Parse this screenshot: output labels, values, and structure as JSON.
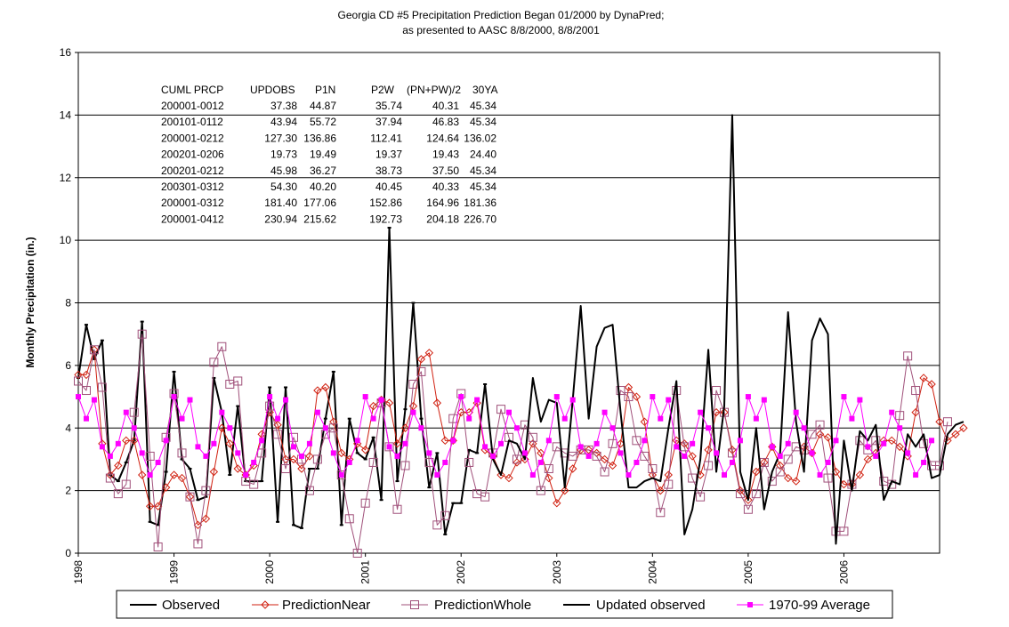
{
  "chart_data": {
    "type": "line",
    "title": "Georgia CD #5 Precipitation Prediction Began 01/2000 by DynaPred;",
    "subtitle": "as presented to AASC 8/8/2000, 8/8/2001",
    "xlabel": "",
    "ylabel": "Monthly Precipitation (in.)",
    "ylim": [
      0,
      16
    ],
    "yticks": [
      "0",
      "2",
      "4",
      "6",
      "8",
      "10",
      "12",
      "14",
      "16"
    ],
    "xlim": [
      1998,
      2007
    ],
    "xticks": [
      "1998",
      "1999",
      "2000",
      "2001",
      "2002",
      "2003",
      "2004",
      "2005",
      "2006"
    ],
    "grid": "horizontal",
    "legend_position": "bottom",
    "table": {
      "headers": [
        "CUML PRCP",
        "UPDOBS",
        "P1N",
        "P2W",
        "(PN+PW)/2",
        "30YA"
      ],
      "rows": [
        [
          "200001-0012",
          "37.38",
          "44.87",
          "35.74",
          "40.31",
          "45.34"
        ],
        [
          "200101-0112",
          "43.94",
          "55.72",
          "37.94",
          "46.83",
          "45.34"
        ],
        [
          "200001-0212",
          "127.30",
          "136.86",
          "112.41",
          "124.64",
          "136.02"
        ],
        [
          "200201-0206",
          "19.73",
          "19.49",
          "19.37",
          "19.43",
          "24.40"
        ],
        [
          "200201-0212",
          "45.98",
          "36.27",
          "38.73",
          "37.50",
          "45.34"
        ],
        [
          "200301-0312",
          "54.30",
          "40.20",
          "40.45",
          "40.33",
          "45.34"
        ],
        [
          "200001-0312",
          "181.40",
          "177.06",
          "152.86",
          "164.96",
          "181.36"
        ],
        [
          "200001-0412",
          "230.94",
          "215.62",
          "192.73",
          "204.18",
          "226.70"
        ]
      ]
    },
    "series": [
      {
        "name": "Observed",
        "color": "#000000",
        "start": "1998-01",
        "values": [
          5.6,
          7.3,
          6.2,
          6.8,
          2.5,
          2.3,
          2.9,
          3.6,
          7.4,
          1.0,
          0.9,
          2.6,
          5.8,
          3.0,
          2.7,
          1.7,
          1.8,
          5.6,
          4.5,
          2.5,
          4.7,
          2.3,
          2.3,
          2.3,
          5.3,
          1.0,
          5.3,
          0.9,
          0.8,
          2.7,
          2.7,
          4.3,
          5.8,
          0.9,
          4.3,
          3.2,
          3.0,
          3.7,
          1.7,
          10.4,
          2.3,
          4.6,
          8.0,
          4.3,
          2.1,
          3.2,
          0.6,
          1.6,
          1.6,
          3.3,
          3.2,
          5.4,
          null,
          null,
          null,
          null,
          null,
          null,
          null,
          null,
          null,
          null,
          null,
          null,
          null,
          null,
          null,
          null,
          null,
          null,
          null,
          null,
          null,
          null,
          null,
          null,
          null,
          null,
          null,
          null,
          null,
          null,
          null,
          null,
          null,
          null,
          null,
          null,
          null,
          null,
          null,
          null,
          null,
          null,
          null,
          null,
          null,
          null,
          null,
          null,
          null,
          null,
          null,
          null,
          null,
          null,
          null,
          null
        ]
      },
      {
        "name": "PredictionNear",
        "color": "#d02010",
        "start": "1998-01",
        "values": [
          5.7,
          5.7,
          6.5,
          3.5,
          2.5,
          2.8,
          3.6,
          3.6,
          2.5,
          1.5,
          1.5,
          2.1,
          2.5,
          2.4,
          1.8,
          0.9,
          1.1,
          2.6,
          4.0,
          3.5,
          2.7,
          2.5,
          2.8,
          3.8,
          4.5,
          4.1,
          3.0,
          3.0,
          2.7,
          3.1,
          5.2,
          5.3,
          4.2,
          3.2,
          3.0,
          3.5,
          3.3,
          4.7,
          4.9,
          4.8,
          3.5,
          4.0,
          4.7,
          6.2,
          6.4,
          4.8,
          3.6,
          3.6,
          4.5,
          4.5,
          4.8,
          3.3,
          3.1,
          2.5,
          2.4,
          2.9,
          3.0,
          3.5,
          3.2,
          2.4,
          1.6,
          2.0,
          2.7,
          3.3,
          3.3,
          3.2,
          3.0,
          2.8,
          3.5,
          5.3,
          5.0,
          4.2,
          2.5,
          2.0,
          2.5,
          3.6,
          3.5,
          3.1,
          2.5,
          3.3,
          4.5,
          4.5,
          3.3,
          2.0,
          1.7,
          2.6,
          2.9,
          3.4,
          2.8,
          2.4,
          2.3,
          3.4,
          3.2,
          3.8,
          3.7,
          2.6,
          2.2,
          2.2,
          2.5,
          3.0,
          3.2,
          3.6,
          3.6,
          3.4,
          3.1,
          4.5,
          5.6,
          5.4,
          4.2,
          3.6,
          3.8,
          4.0
        ]
      },
      {
        "name": "PredictionWhole",
        "color": "#a0507a",
        "start": "1998-01",
        "values": [
          5.5,
          5.2,
          6.5,
          5.3,
          2.4,
          1.9,
          2.2,
          4.5,
          7.0,
          3.1,
          0.2,
          3.7,
          5.1,
          3.2,
          1.8,
          0.3,
          2.0,
          6.1,
          6.6,
          5.4,
          5.5,
          2.3,
          2.2,
          3.2,
          4.7,
          3.8,
          2.7,
          3.7,
          3.0,
          2.0,
          3.0,
          3.8,
          4.0,
          2.5,
          1.1,
          0.0,
          1.6,
          2.9,
          4.8,
          3.4,
          1.4,
          2.8,
          5.4,
          5.8,
          2.9,
          0.9,
          1.2,
          4.3,
          5.1,
          2.9,
          1.9,
          1.8,
          3.2,
          4.6,
          3.7,
          3.0,
          4.1,
          3.7,
          2.0,
          2.7,
          3.4,
          3.2,
          3.1,
          3.3,
          3.3,
          3.1,
          2.6,
          3.5,
          5.2,
          5.0,
          3.6,
          3.1,
          2.7,
          1.3,
          2.2,
          5.2,
          3.4,
          2.4,
          1.8,
          2.8,
          5.2,
          4.5,
          3.2,
          1.9,
          1.4,
          1.9,
          2.9,
          2.3,
          2.6,
          3.0,
          3.4,
          3.3,
          3.8,
          4.1,
          2.4,
          0.7,
          0.7,
          2.2,
          3.6,
          3.3,
          3.6,
          2.3,
          2.2,
          4.4,
          6.3,
          5.2,
          3.5,
          2.8,
          2.8,
          4.2
        ]
      },
      {
        "name": "Updated observed",
        "color": "#000000",
        "start": "1998-01",
        "values": [
          null,
          null,
          null,
          null,
          null,
          null,
          null,
          null,
          null,
          null,
          null,
          null,
          null,
          null,
          null,
          null,
          null,
          null,
          null,
          null,
          null,
          null,
          null,
          null,
          null,
          null,
          null,
          null,
          null,
          null,
          null,
          null,
          null,
          null,
          null,
          null,
          null,
          null,
          null,
          null,
          null,
          null,
          null,
          null,
          null,
          null,
          null,
          null,
          null,
          null,
          null,
          5.4,
          3.0,
          2.5,
          3.6,
          3.5,
          3.0,
          5.6,
          4.2,
          4.9,
          4.8,
          2.1,
          4.9,
          7.9,
          4.3,
          6.6,
          7.2,
          7.3,
          4.5,
          2.1,
          2.1,
          2.3,
          2.4,
          2.3,
          4.0,
          5.5,
          0.6,
          1.4,
          3.0,
          6.5,
          2.6,
          4.7,
          14.0,
          2.6,
          1.7,
          4.0,
          1.4,
          2.6,
          3.2,
          7.7,
          4.2,
          2.6,
          6.8,
          7.5,
          7.0,
          0.3,
          3.6,
          2.0,
          3.9,
          3.6,
          4.1,
          1.7,
          2.3,
          2.2,
          3.8,
          3.4,
          3.8,
          2.4,
          2.5,
          3.8,
          4.1,
          4.2
        ]
      },
      {
        "name": "1970-99 Average",
        "color": "#ff00ff",
        "start": "1998-01",
        "values": [
          5.0,
          4.3,
          4.9,
          3.4,
          3.1,
          3.5,
          4.5,
          4.0,
          3.2,
          2.5,
          2.9,
          3.6,
          5.0,
          4.3,
          4.9,
          3.4,
          3.1,
          3.5,
          4.5,
          4.0,
          3.2,
          2.5,
          2.9,
          3.6,
          5.0,
          4.3,
          4.9,
          3.4,
          3.1,
          3.5,
          4.5,
          4.0,
          3.2,
          2.5,
          2.9,
          3.6,
          5.0,
          4.3,
          4.9,
          3.4,
          3.1,
          3.5,
          4.5,
          4.0,
          3.2,
          2.5,
          2.9,
          3.6,
          5.0,
          4.3,
          4.9,
          3.4,
          3.1,
          3.5,
          4.5,
          4.0,
          3.2,
          2.5,
          2.9,
          3.6,
          5.0,
          4.3,
          4.9,
          3.4,
          3.1,
          3.5,
          4.5,
          4.0,
          3.2,
          2.5,
          2.9,
          3.6,
          5.0,
          4.3,
          4.9,
          3.4,
          3.1,
          3.5,
          4.5,
          4.0,
          3.2,
          2.5,
          2.9,
          3.6,
          5.0,
          4.3,
          4.9,
          3.4,
          3.1,
          3.5,
          4.5,
          4.0,
          3.2,
          2.5,
          2.9,
          3.6,
          5.0,
          4.3,
          4.9,
          3.4,
          3.1,
          3.5,
          4.5,
          4.0,
          3.2,
          2.5,
          2.9,
          3.6
        ]
      }
    ]
  }
}
